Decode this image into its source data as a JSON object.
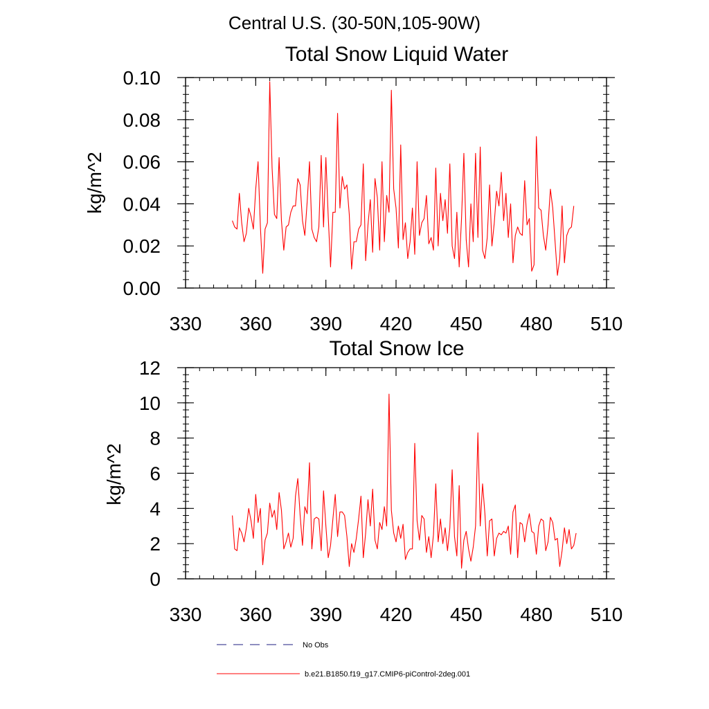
{
  "figure": {
    "region_title": "Central U.S. (30-50N,105-90W)"
  },
  "colors": {
    "model_line": "#ff0000",
    "obs_line": "#4a4a9a",
    "axes": "#000000",
    "background": "#ffffff"
  },
  "chart_data": [
    {
      "type": "line",
      "title": "Total Snow Liquid Water",
      "xlabel": "",
      "ylabel": "kg/m^2",
      "xlim": [
        330,
        510
      ],
      "ylim": [
        0.0,
        0.1
      ],
      "xticks": [
        330,
        360,
        390,
        420,
        450,
        480,
        510
      ],
      "xtick_labels": [
        "330",
        "360",
        "390",
        "420",
        "450",
        "480",
        "510"
      ],
      "yticks": [
        0.0,
        0.02,
        0.04,
        0.06,
        0.08,
        0.1
      ],
      "ytick_labels": [
        "0.00",
        "0.02",
        "0.04",
        "0.06",
        "0.08",
        "0.10"
      ],
      "grid": false,
      "series": [
        {
          "name": "b.e21.B1850.f19_g17.CMIP6-piControl-2deg.001",
          "x_start": 350,
          "x_step": 1,
          "values": [
            0.032,
            0.029,
            0.028,
            0.045,
            0.031,
            0.022,
            0.026,
            0.038,
            0.034,
            0.028,
            0.047,
            0.06,
            0.029,
            0.007,
            0.028,
            0.031,
            0.098,
            0.057,
            0.035,
            0.033,
            0.062,
            0.032,
            0.018,
            0.029,
            0.03,
            0.036,
            0.039,
            0.039,
            0.052,
            0.049,
            0.032,
            0.025,
            0.041,
            0.06,
            0.028,
            0.024,
            0.022,
            0.029,
            0.063,
            0.029,
            0.062,
            0.034,
            0.01,
            0.036,
            0.036,
            0.083,
            0.038,
            0.053,
            0.047,
            0.049,
            0.035,
            0.009,
            0.022,
            0.022,
            0.028,
            0.03,
            0.059,
            0.013,
            0.03,
            0.042,
            0.017,
            0.052,
            0.043,
            0.018,
            0.06,
            0.022,
            0.044,
            0.036,
            0.094,
            0.047,
            0.038,
            0.019,
            0.068,
            0.023,
            0.031,
            0.014,
            0.022,
            0.038,
            0.016,
            0.06,
            0.025,
            0.031,
            0.033,
            0.044,
            0.021,
            0.024,
            0.018,
            0.057,
            0.02,
            0.045,
            0.032,
            0.042,
            0.026,
            0.059,
            0.02,
            0.014,
            0.036,
            0.01,
            0.033,
            0.064,
            0.023,
            0.01,
            0.04,
            0.022,
            0.064,
            0.024,
            0.067,
            0.018,
            0.014,
            0.024,
            0.049,
            0.02,
            0.031,
            0.046,
            0.039,
            0.055,
            0.032,
            0.045,
            0.024,
            0.04,
            0.012,
            0.025,
            0.029,
            0.026,
            0.025,
            0.051,
            0.03,
            0.033,
            0.008,
            0.011,
            0.072,
            0.038,
            0.037,
            0.025,
            0.018,
            0.03,
            0.047,
            0.038,
            0.022,
            0.006,
            0.014,
            0.039,
            0.012,
            0.025,
            0.028,
            0.029,
            0.039
          ]
        }
      ]
    },
    {
      "type": "line",
      "title": "Total Snow Ice",
      "xlabel": "",
      "ylabel": "kg/m^2",
      "xlim": [
        330,
        510
      ],
      "ylim": [
        0,
        12
      ],
      "xticks": [
        330,
        360,
        390,
        420,
        450,
        480,
        510
      ],
      "xtick_labels": [
        "330",
        "360",
        "390",
        "420",
        "450",
        "480",
        "510"
      ],
      "yticks": [
        0,
        2,
        4,
        6,
        8,
        10,
        12
      ],
      "ytick_labels": [
        "0",
        "2",
        "4",
        "6",
        "8",
        "10",
        "12"
      ],
      "grid": false,
      "series": [
        {
          "name": "b.e21.B1850.f19_g17.CMIP6-piControl-2deg.001",
          "x_start": 350,
          "x_step": 1,
          "values": [
            3.6,
            1.7,
            1.6,
            2.9,
            2.6,
            2.1,
            2.9,
            4.0,
            3.3,
            2.3,
            4.8,
            3.2,
            4.0,
            0.8,
            2.2,
            2.6,
            4.3,
            3.5,
            3.9,
            2.8,
            4.9,
            3.9,
            1.7,
            2.1,
            2.6,
            1.8,
            2.3,
            4.7,
            5.7,
            3.6,
            1.9,
            4.1,
            3.7,
            6.6,
            1.7,
            3.4,
            3.5,
            3.4,
            1.6,
            5.0,
            3.0,
            1.2,
            1.9,
            3.4,
            4.8,
            2.4,
            3.8,
            3.8,
            3.6,
            2.4,
            0.7,
            2.0,
            1.5,
            2.3,
            3.4,
            4.7,
            1.2,
            2.6,
            4.5,
            3.0,
            5.1,
            2.2,
            1.7,
            3.2,
            2.8,
            4.1,
            3.0,
            10.5,
            3.9,
            2.6,
            2.1,
            3.0,
            2.3,
            3.1,
            1.1,
            1.5,
            1.7,
            1.7,
            7.7,
            3.3,
            2.2,
            3.6,
            3.4,
            1.5,
            2.4,
            1.2,
            2.5,
            5.4,
            2.1,
            3.4,
            2.0,
            2.9,
            1.6,
            2.9,
            6.2,
            2.4,
            1.3,
            5.3,
            0.6,
            2.2,
            2.7,
            1.7,
            1.0,
            1.8,
            3.0,
            8.3,
            3.0,
            5.4,
            3.7,
            1.3,
            3.3,
            3.4,
            1.3,
            2.3,
            2.6,
            2.5,
            2.7,
            2.6,
            3.0,
            1.4,
            3.8,
            4.2,
            1.2,
            3.2,
            3.1,
            2.1,
            3.1,
            3.7,
            2.7,
            2.6,
            1.4,
            3.0,
            3.4,
            3.3,
            1.6,
            2.1,
            3.5,
            3.2,
            2.2,
            2.3,
            0.7,
            1.6,
            2.9,
            2.0,
            2.8,
            1.7,
            1.9,
            2.6
          ]
        }
      ]
    }
  ],
  "legend": {
    "placement": "bottom",
    "entries": [
      {
        "label": "No Obs",
        "style": "dashed"
      },
      {
        "label": "b.e21.B1850.f19_g17.CMIP6-piControl-2deg.001",
        "style": "solid"
      }
    ]
  }
}
